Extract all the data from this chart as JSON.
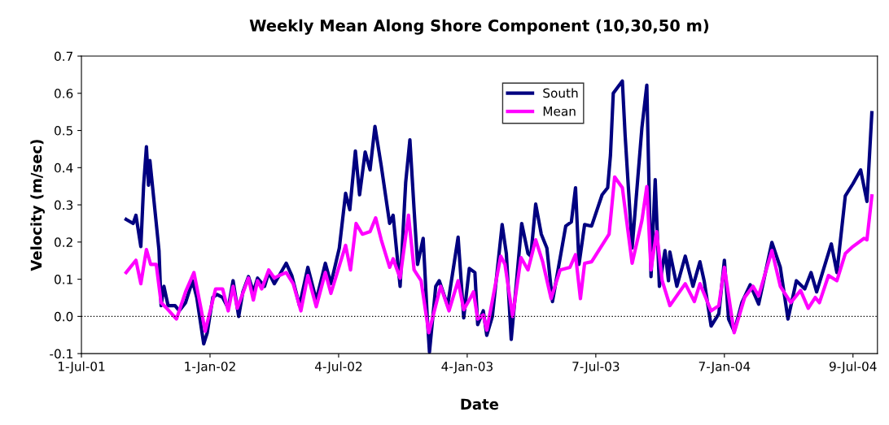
{
  "chart_data": {
    "type": "line",
    "title": "Weekly Mean Along Shore Component (10,30,50 m)",
    "xlabel": "Date",
    "ylabel": "Velocity (m/sec)",
    "xlim": [
      "2001-07-01",
      "2004-08-13"
    ],
    "xticks": [
      {
        "value": "2001-07-01",
        "label": "1-Jul-01"
      },
      {
        "value": "2002-01-01",
        "label": "1-Jan-02"
      },
      {
        "value": "2002-07-04",
        "label": "4-Jul-02"
      },
      {
        "value": "2003-01-04",
        "label": "4-Jan-03"
      },
      {
        "value": "2003-07-07",
        "label": "7-Jul-03"
      },
      {
        "value": "2004-01-07",
        "label": "7-Jan-04"
      },
      {
        "value": "2004-07-09",
        "label": "9-Jul-04"
      }
    ],
    "ylim": [
      -0.1,
      0.7
    ],
    "yticks": [
      -0.1,
      {
        "value": 0,
        "label": "0.0"
      },
      0.1,
      0.2,
      0.3,
      0.4,
      0.5,
      0.6,
      0.7
    ],
    "grid": false,
    "legend": "top",
    "marker": "none",
    "line_style": "solid",
    "ref_lines": [
      {
        "axis": "y",
        "value": 0,
        "label": null,
        "color": "#000000",
        "line_style": "dotted"
      }
    ],
    "series": [
      {
        "name": "South",
        "color": "#000080",
        "x": [
          "2001-09-03",
          "2001-09-13",
          "2001-09-17",
          "2001-09-24",
          "2001-09-28",
          "2001-10-02",
          "2001-10-05",
          "2001-10-07",
          "2001-10-20",
          "2001-10-23",
          "2001-10-27",
          "2001-11-02",
          "2001-11-12",
          "2001-11-18",
          "2001-11-27",
          "2001-12-07",
          "2001-12-13",
          "2001-12-23",
          "2001-12-28",
          "2002-01-05",
          "2002-01-11",
          "2002-01-19",
          "2002-01-27",
          "2002-02-03",
          "2002-02-11",
          "2002-02-17",
          "2002-02-25",
          "2002-03-04",
          "2002-03-10",
          "2002-03-20",
          "2002-03-26",
          "2002-04-03",
          "2002-04-10",
          "2002-04-20",
          "2002-04-28",
          "2002-05-09",
          "2002-05-21",
          "2002-06-02",
          "2002-06-15",
          "2002-06-23",
          "2002-07-05",
          "2002-07-14",
          "2002-07-20",
          "2002-07-28",
          "2002-08-03",
          "2002-08-11",
          "2002-08-18",
          "2002-08-25",
          "2002-09-03",
          "2002-09-15",
          "2002-09-20",
          "2002-09-30",
          "2002-10-08",
          "2002-10-14",
          "2002-10-20",
          "2002-10-25",
          "2002-11-02",
          "2002-11-08",
          "2002-11-11",
          "2002-11-20",
          "2002-11-25",
          "2002-12-07",
          "2002-12-22",
          "2002-12-30",
          "2003-01-07",
          "2003-01-15",
          "2003-01-19",
          "2003-01-27",
          "2003-02-01",
          "2003-02-09",
          "2003-02-23",
          "2003-03-01",
          "2003-03-08",
          "2003-03-16",
          "2003-03-23",
          "2003-04-01",
          "2003-04-05",
          "2003-04-12",
          "2003-04-20",
          "2003-04-28",
          "2003-05-06",
          "2003-05-25",
          "2003-06-02",
          "2003-06-08",
          "2003-06-13",
          "2003-06-21",
          "2003-07-01",
          "2003-07-16",
          "2003-07-24",
          "2003-07-28",
          "2003-08-01",
          "2003-08-14",
          "2003-08-18",
          "2003-08-28",
          "2003-09-11",
          "2003-09-18",
          "2003-09-24",
          "2003-09-30",
          "2003-10-06",
          "2003-10-14",
          "2003-10-19",
          "2003-10-21",
          "2003-10-31",
          "2003-11-12",
          "2003-11-23",
          "2003-12-03",
          "2003-12-09",
          "2003-12-19",
          "2003-12-30",
          "2004-01-07",
          "2004-01-13",
          "2004-01-21",
          "2004-02-01",
          "2004-02-13",
          "2004-02-25",
          "2004-03-15",
          "2004-03-27",
          "2004-04-07",
          "2004-04-19",
          "2004-05-01",
          "2004-05-10",
          "2004-05-18",
          "2004-06-08",
          "2004-06-16",
          "2004-06-28",
          "2004-07-09",
          "2004-07-20",
          "2004-07-29",
          "2004-08-05"
        ],
        "values": [
          0.261,
          0.25,
          0.272,
          0.188,
          0.353,
          0.456,
          0.353,
          0.419,
          0.177,
          0.029,
          0.081,
          0.029,
          0.029,
          0.015,
          0.037,
          0.096,
          0.051,
          -0.074,
          -0.044,
          0.051,
          0.059,
          0.051,
          0.022,
          0.096,
          0.0,
          0.066,
          0.107,
          0.066,
          0.103,
          0.081,
          0.118,
          0.088,
          0.11,
          0.143,
          0.11,
          0.029,
          0.132,
          0.044,
          0.143,
          0.088,
          0.184,
          0.331,
          0.287,
          0.445,
          0.327,
          0.442,
          0.394,
          0.511,
          0.405,
          0.25,
          0.272,
          0.081,
          0.361,
          0.475,
          0.287,
          0.14,
          0.21,
          -0.007,
          -0.096,
          0.081,
          0.096,
          0.029,
          0.213,
          -0.004,
          0.129,
          0.118,
          -0.022,
          0.015,
          -0.051,
          0.0,
          0.247,
          0.169,
          -0.062,
          0.103,
          0.25,
          0.169,
          0.162,
          0.302,
          0.221,
          0.184,
          0.04,
          0.243,
          0.254,
          0.346,
          0.14,
          0.247,
          0.243,
          0.327,
          0.346,
          0.434,
          0.6,
          0.633,
          0.486,
          0.184,
          0.508,
          0.622,
          0.107,
          0.368,
          0.081,
          0.177,
          0.096,
          0.173,
          0.081,
          0.162,
          0.081,
          0.147,
          0.096,
          -0.026,
          0.007,
          0.151,
          -0.007,
          -0.04,
          0.037,
          0.085,
          0.033,
          0.199,
          0.132,
          -0.007,
          0.096,
          0.074,
          0.118,
          0.066,
          0.195,
          0.118,
          0.324,
          0.357,
          0.394,
          0.309,
          0.548
        ]
      },
      {
        "name": "Mean",
        "color": "#ff00ff",
        "x": [
          "2001-09-03",
          "2001-09-17",
          "2001-09-24",
          "2001-10-02",
          "2001-10-08",
          "2001-10-16",
          "2001-10-23",
          "2001-10-31",
          "2001-11-14",
          "2001-11-27",
          "2001-12-09",
          "2001-12-19",
          "2001-12-25",
          "2002-01-09",
          "2002-01-19",
          "2002-01-27",
          "2002-02-03",
          "2002-02-09",
          "2002-02-25",
          "2002-03-04",
          "2002-03-10",
          "2002-03-16",
          "2002-03-26",
          "2002-04-03",
          "2002-04-10",
          "2002-04-20",
          "2002-04-30",
          "2002-05-11",
          "2002-05-21",
          "2002-06-02",
          "2002-06-15",
          "2002-06-23",
          "2002-07-14",
          "2002-07-21",
          "2002-07-29",
          "2002-08-07",
          "2002-08-18",
          "2002-08-26",
          "2002-09-03",
          "2002-09-15",
          "2002-09-20",
          "2002-09-30",
          "2002-10-12",
          "2002-10-20",
          "2002-10-30",
          "2002-11-10",
          "2002-11-27",
          "2002-12-09",
          "2002-12-22",
          "2002-12-30",
          "2003-01-09",
          "2003-01-13",
          "2003-01-19",
          "2003-01-27",
          "2003-02-01",
          "2003-02-21",
          "2003-02-27",
          "2003-03-10",
          "2003-03-22",
          "2003-04-01",
          "2003-04-12",
          "2003-04-22",
          "2003-05-04",
          "2003-05-17",
          "2003-05-31",
          "2003-06-08",
          "2003-06-15",
          "2003-06-21",
          "2003-07-01",
          "2003-07-26",
          "2003-08-03",
          "2003-08-14",
          "2003-08-28",
          "2003-09-11",
          "2003-09-18",
          "2003-09-24",
          "2003-10-02",
          "2003-10-10",
          "2003-10-21",
          "2003-11-12",
          "2003-11-25",
          "2003-12-03",
          "2003-12-19",
          "2003-12-30",
          "2004-01-07",
          "2004-01-21",
          "2004-02-05",
          "2004-02-17",
          "2004-02-25",
          "2004-03-15",
          "2004-03-27",
          "2004-04-11",
          "2004-04-25",
          "2004-05-06",
          "2004-05-16",
          "2004-05-22",
          "2004-06-04",
          "2004-06-16",
          "2004-06-28",
          "2004-07-09",
          "2004-07-25",
          "2004-07-29",
          "2004-08-05"
        ],
        "values": [
          0.118,
          0.151,
          0.088,
          0.18,
          0.14,
          0.14,
          0.037,
          0.022,
          -0.007,
          0.066,
          0.118,
          0.022,
          -0.04,
          0.074,
          0.074,
          0.015,
          0.081,
          0.022,
          0.103,
          0.044,
          0.096,
          0.074,
          0.125,
          0.103,
          0.11,
          0.118,
          0.088,
          0.015,
          0.11,
          0.026,
          0.118,
          0.062,
          0.191,
          0.125,
          0.25,
          0.221,
          0.228,
          0.265,
          0.206,
          0.132,
          0.155,
          0.103,
          0.272,
          0.125,
          0.096,
          -0.044,
          0.081,
          0.015,
          0.096,
          0.018,
          0.051,
          0.066,
          -0.007,
          0.004,
          -0.037,
          0.162,
          0.14,
          0.0,
          0.158,
          0.125,
          0.206,
          0.147,
          0.048,
          0.125,
          0.132,
          0.166,
          0.048,
          0.143,
          0.147,
          0.221,
          0.375,
          0.346,
          0.143,
          0.258,
          0.349,
          0.125,
          0.228,
          0.096,
          0.029,
          0.088,
          0.04,
          0.088,
          0.015,
          0.029,
          0.132,
          -0.044,
          0.051,
          0.081,
          0.055,
          0.177,
          0.081,
          0.037,
          0.07,
          0.022,
          0.051,
          0.037,
          0.11,
          0.096,
          0.169,
          0.188,
          0.21,
          0.206,
          0.324
        ]
      }
    ]
  }
}
